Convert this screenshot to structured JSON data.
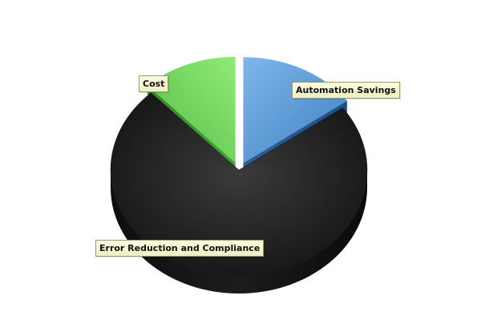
{
  "chart_data": {
    "type": "pie",
    "style": "3d-exploded",
    "labels": [
      "Automation Savings",
      "Error Reduction and Compliance",
      "Cost"
    ],
    "values": [
      15,
      73,
      12
    ],
    "colors": {
      "Automation Savings": "#5b9bd5",
      "Error Reduction and Compliance": "#222222",
      "Cost": "#66cc55"
    },
    "legend": "none"
  }
}
